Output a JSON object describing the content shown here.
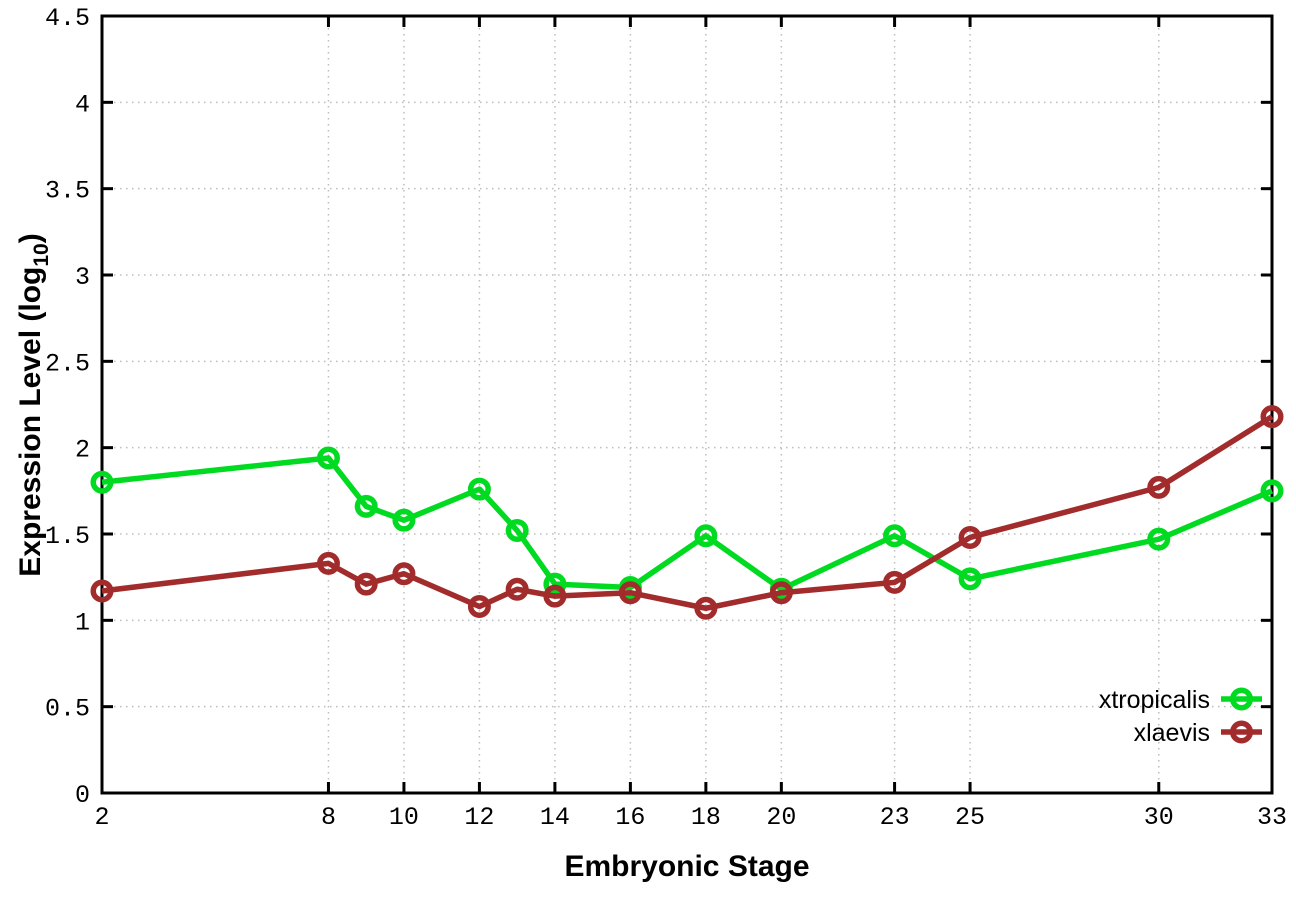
{
  "chart_data": {
    "type": "line",
    "title": "",
    "xlabel": "Embryonic Stage",
    "ylabel": "Expression Level (log10)",
    "ylabel_parts": {
      "prefix": "Expression Level (log",
      "sub": "10",
      "suffix": ")"
    },
    "x": [
      2,
      8,
      9,
      10,
      12,
      13,
      14,
      16,
      18,
      20,
      23,
      25,
      30,
      33
    ],
    "series": [
      {
        "name": "xtropicalis",
        "color": "#00da21",
        "values": [
          1.8,
          1.94,
          1.66,
          1.58,
          1.76,
          1.52,
          1.21,
          1.19,
          1.49,
          1.18,
          1.49,
          1.24,
          1.47,
          1.75
        ]
      },
      {
        "name": "xlaevis",
        "color": "#a22c2c",
        "values": [
          1.17,
          1.33,
          1.21,
          1.27,
          1.08,
          1.18,
          1.14,
          1.16,
          1.07,
          1.16,
          1.22,
          1.48,
          1.77,
          2.18
        ]
      }
    ],
    "xticks": [
      2,
      8,
      10,
      12,
      14,
      16,
      18,
      20,
      23,
      25,
      30,
      33
    ],
    "yticks": [
      0,
      0.5,
      1,
      1.5,
      2,
      2.5,
      3,
      3.5,
      4,
      4.5
    ],
    "xlim": [
      2,
      33
    ],
    "ylim": [
      0,
      4.5
    ],
    "grid": true,
    "grid_color": "#bdbdbd",
    "axis_color": "#000000",
    "background": "#ffffff",
    "marker": "open-circle",
    "legend_position": "bottom-right",
    "legend_entries": [
      "xtropicalis",
      "xlaevis"
    ]
  }
}
